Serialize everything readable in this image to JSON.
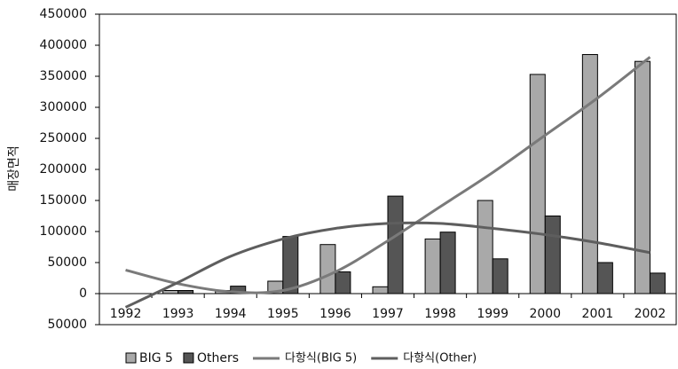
{
  "chart_data": {
    "type": "bar",
    "y_label": "매장면적",
    "categories": [
      "1992",
      "1993",
      "1994",
      "1995",
      "1996",
      "1997",
      "1998",
      "1999",
      "2000",
      "2001",
      "2002"
    ],
    "series": [
      {
        "name": "BIG 5",
        "color": "#a9a9a9",
        "values": [
          0,
          5000,
          5000,
          20000,
          79000,
          11000,
          88000,
          150000,
          353000,
          385000,
          374000
        ]
      },
      {
        "name": "Others",
        "color": "#555555",
        "values": [
          0,
          5000,
          12000,
          92000,
          35000,
          157000,
          99000,
          56000,
          125000,
          50000,
          33000
        ]
      }
    ],
    "trendlines": [
      {
        "name": "다항식(BIG 5)",
        "color": "#7a7a7a",
        "values": [
          38000,
          16000,
          3000,
          5000,
          35000,
          85000,
          140000,
          195000,
          255000,
          315000,
          381000
        ]
      },
      {
        "name": "다항식(Other)",
        "color": "#5e5e5e",
        "values": [
          -22000,
          18000,
          60000,
          88000,
          105000,
          113000,
          113000,
          105000,
          95000,
          82000,
          66000
        ]
      }
    ],
    "ylim": [
      -50000,
      450000
    ],
    "yticks": [
      {
        "value": -50000,
        "label": "50000"
      },
      0,
      50000,
      100000,
      150000,
      200000,
      250000,
      300000,
      350000,
      400000,
      450000
    ]
  }
}
